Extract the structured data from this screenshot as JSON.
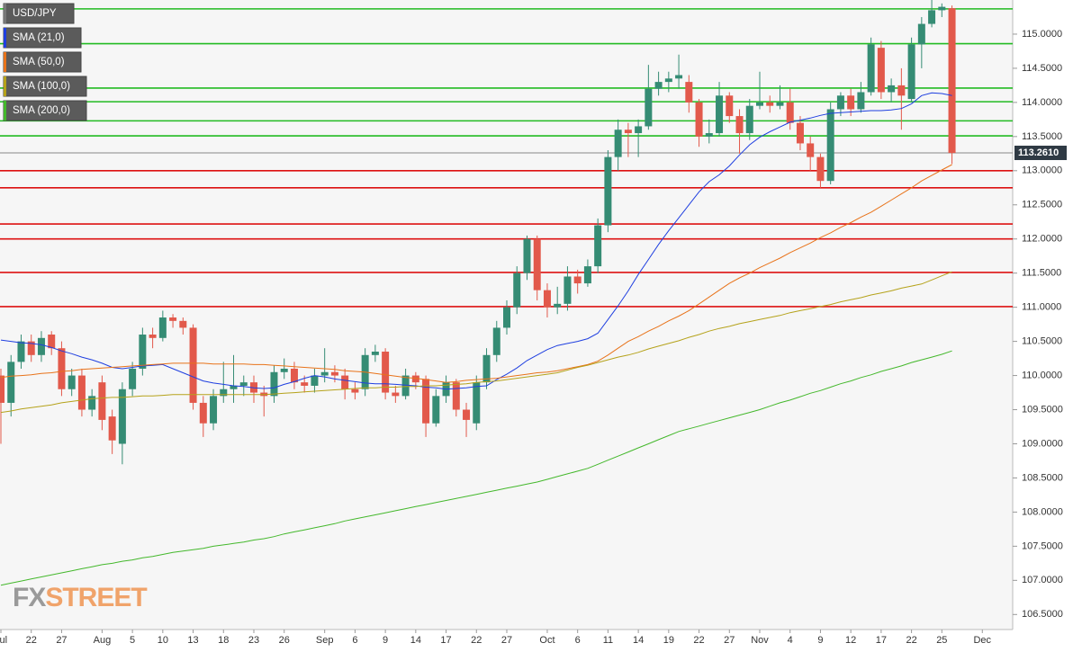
{
  "chart_data": {
    "type": "candlestick",
    "symbol": "USD/JPY",
    "watermark": [
      "FX",
      "STREET"
    ],
    "categories": [
      "Jul",
      null,
      null,
      "22",
      null,
      null,
      "27",
      null,
      null,
      null,
      "Aug",
      null,
      null,
      "5",
      null,
      null,
      "10",
      null,
      null,
      "13",
      null,
      null,
      "18",
      null,
      null,
      "23",
      null,
      null,
      "26",
      null,
      null,
      null,
      "Sep",
      null,
      null,
      "6",
      null,
      null,
      "9",
      null,
      null,
      "14",
      null,
      null,
      "17",
      null,
      null,
      "22",
      null,
      null,
      "27",
      null,
      null,
      null,
      "Oct",
      null,
      null,
      "6",
      null,
      null,
      "11",
      null,
      null,
      "14",
      null,
      null,
      "19",
      null,
      null,
      "22",
      null,
      null,
      "27",
      null,
      null,
      "Nov",
      null,
      null,
      "4",
      null,
      null,
      "9",
      null,
      null,
      "12",
      null,
      null,
      "17",
      null,
      null,
      "22",
      null,
      null,
      "25",
      null,
      null,
      null,
      "Dec"
    ],
    "ohlc": {
      "up_color": "#358c74",
      "down_color": "#e2594b",
      "open": [
        110.0,
        109.6,
        110.2,
        110.5,
        110.3,
        110.6,
        110.4,
        109.8,
        110.0,
        109.5,
        109.9,
        109.4,
        109.0,
        109.8,
        110.1,
        110.6,
        110.55,
        110.85,
        110.8,
        110.7,
        109.6,
        109.3,
        109.7,
        109.8,
        109.85,
        109.9,
        109.75,
        109.7,
        110.05,
        110.1,
        109.9,
        109.85,
        110.0,
        110.05,
        110.0,
        109.8,
        109.8,
        110.3,
        110.35,
        109.75,
        109.7,
        110.0,
        109.95,
        109.3,
        109.7,
        109.9,
        109.5,
        109.3,
        109.9,
        110.3,
        110.7,
        111.0,
        111.5,
        112.0,
        111.25,
        111.0,
        111.05,
        111.45,
        111.35,
        111.6,
        112.2,
        113.2,
        113.6,
        113.55,
        113.65,
        114.2,
        114.3,
        114.35,
        114.3,
        114.0,
        113.5,
        113.55,
        114.1,
        113.8,
        113.55,
        113.95,
        114.0,
        113.95,
        114.0,
        113.7,
        113.4,
        113.2,
        112.85,
        113.9,
        114.1,
        113.9,
        114.15,
        114.8,
        114.15,
        114.25,
        114.05,
        114.85,
        115.15,
        115.35,
        115.38,
        null,
        null,
        null
      ],
      "high": [
        110.1,
        110.3,
        110.6,
        110.6,
        110.65,
        110.65,
        110.5,
        110.1,
        110.1,
        109.8,
        110.0,
        109.5,
        109.9,
        110.2,
        110.7,
        110.7,
        110.95,
        110.9,
        110.85,
        110.75,
        109.7,
        109.8,
        110.2,
        110.3,
        110.0,
        110.0,
        109.85,
        110.15,
        110.25,
        110.2,
        110.0,
        110.1,
        110.4,
        110.15,
        110.1,
        109.9,
        110.4,
        110.45,
        110.4,
        109.85,
        110.1,
        110.05,
        110.0,
        109.8,
        110.0,
        109.95,
        109.6,
        110.0,
        110.4,
        110.8,
        111.1,
        111.6,
        112.05,
        112.05,
        111.35,
        111.3,
        111.6,
        111.55,
        111.7,
        112.3,
        113.3,
        113.75,
        113.7,
        113.75,
        114.55,
        114.45,
        114.45,
        114.7,
        114.4,
        114.05,
        113.75,
        114.3,
        114.15,
        113.9,
        114.05,
        114.45,
        114.1,
        114.25,
        114.2,
        113.8,
        113.5,
        113.25,
        114.0,
        114.15,
        114.2,
        114.3,
        114.95,
        114.9,
        114.35,
        114.5,
        114.95,
        115.25,
        115.5,
        115.45,
        115.42,
        null,
        null,
        null
      ],
      "low": [
        109.0,
        109.4,
        110.1,
        110.2,
        110.2,
        110.3,
        109.7,
        109.7,
        109.4,
        109.4,
        109.2,
        108.85,
        108.7,
        109.7,
        110.0,
        110.4,
        110.5,
        110.7,
        110.6,
        109.5,
        109.1,
        109.2,
        109.6,
        109.6,
        109.7,
        109.6,
        109.4,
        109.6,
        109.95,
        109.8,
        109.75,
        109.75,
        109.9,
        109.9,
        109.65,
        109.65,
        109.7,
        110.2,
        109.65,
        109.6,
        109.65,
        109.8,
        109.1,
        109.25,
        109.6,
        109.4,
        109.1,
        109.2,
        109.8,
        110.2,
        110.6,
        110.9,
        111.4,
        111.1,
        110.85,
        110.9,
        110.95,
        111.2,
        111.3,
        111.5,
        112.1,
        113.0,
        113.2,
        113.2,
        113.6,
        114.1,
        114.15,
        114.2,
        113.85,
        113.35,
        113.4,
        113.5,
        113.7,
        113.25,
        113.45,
        113.9,
        113.85,
        113.9,
        113.6,
        113.3,
        113.0,
        112.75,
        112.8,
        113.8,
        113.8,
        113.85,
        114.1,
        114.05,
        114.0,
        113.6,
        114.0,
        114.5,
        115.1,
        115.25,
        113.1,
        null,
        null,
        null
      ],
      "close": [
        109.6,
        110.2,
        110.5,
        110.3,
        110.55,
        110.4,
        109.8,
        110.0,
        109.5,
        109.7,
        109.35,
        109.05,
        109.8,
        110.1,
        110.6,
        110.55,
        110.85,
        110.8,
        110.7,
        109.6,
        109.3,
        109.7,
        109.8,
        109.85,
        109.9,
        109.75,
        109.7,
        110.05,
        110.1,
        109.9,
        109.85,
        110.0,
        110.05,
        110.0,
        109.8,
        109.75,
        110.3,
        110.35,
        109.75,
        109.7,
        110.0,
        109.9,
        109.3,
        109.7,
        109.9,
        109.5,
        109.35,
        109.9,
        110.3,
        110.7,
        111.0,
        111.5,
        112.0,
        111.25,
        111.0,
        111.05,
        111.45,
        111.35,
        111.6,
        112.2,
        113.2,
        113.6,
        113.55,
        113.65,
        114.2,
        114.3,
        114.35,
        114.4,
        114.0,
        113.5,
        113.55,
        114.1,
        113.8,
        113.55,
        113.95,
        114.0,
        113.95,
        114.0,
        113.7,
        113.4,
        113.2,
        112.85,
        113.9,
        114.1,
        113.9,
        114.15,
        114.85,
        114.15,
        114.25,
        114.1,
        114.85,
        115.15,
        115.35,
        115.4,
        113.26,
        null,
        null,
        null
      ]
    },
    "series": [
      {
        "name": "SMA (21,0)",
        "color": "#1f3fe0",
        "values": [
          110.52,
          110.5,
          110.48,
          110.47,
          110.45,
          110.41,
          110.36,
          110.32,
          110.27,
          110.23,
          110.18,
          110.12,
          110.1,
          110.12,
          110.14,
          110.15,
          110.16,
          110.1,
          110.04,
          109.98,
          109.92,
          109.89,
          109.87,
          109.85,
          109.84,
          109.82,
          109.81,
          109.82,
          109.87,
          109.91,
          109.96,
          110.0,
          109.98,
          109.95,
          109.93,
          109.91,
          109.89,
          109.88,
          109.88,
          109.87,
          109.86,
          109.85,
          109.83,
          109.82,
          109.8,
          109.81,
          109.82,
          109.84,
          109.85,
          109.94,
          110.02,
          110.11,
          110.22,
          110.3,
          110.38,
          110.44,
          110.47,
          110.5,
          110.54,
          110.62,
          110.82,
          111.02,
          111.24,
          111.48,
          111.7,
          111.92,
          112.12,
          112.31,
          112.5,
          112.69,
          112.84,
          112.94,
          113.07,
          113.23,
          113.38,
          113.49,
          113.57,
          113.64,
          113.71,
          113.74,
          113.77,
          113.81,
          113.84,
          113.85,
          113.86,
          113.87,
          113.88,
          113.88,
          113.89,
          113.91,
          113.98,
          114.1,
          114.14,
          114.13,
          114.1,
          null,
          null,
          null
        ]
      },
      {
        "name": "SMA (50,0)",
        "color": "#e8731a",
        "values": [
          109.97,
          109.99,
          110.0,
          110.01,
          110.03,
          110.04,
          110.06,
          110.07,
          110.09,
          110.1,
          110.11,
          110.12,
          110.13,
          110.14,
          110.15,
          110.16,
          110.17,
          110.18,
          110.18,
          110.18,
          110.18,
          110.17,
          110.17,
          110.17,
          110.17,
          110.16,
          110.16,
          110.15,
          110.14,
          110.13,
          110.12,
          110.11,
          110.1,
          110.09,
          110.07,
          110.06,
          110.05,
          110.03,
          110.01,
          109.99,
          109.97,
          109.96,
          109.94,
          109.92,
          109.9,
          109.91,
          109.93,
          109.94,
          109.95,
          109.96,
          109.98,
          110.0,
          110.02,
          110.04,
          110.05,
          110.07,
          110.1,
          110.13,
          110.16,
          110.21,
          110.3,
          110.4,
          110.5,
          110.57,
          110.65,
          110.72,
          110.8,
          110.87,
          110.95,
          111.05,
          111.15,
          111.25,
          111.35,
          111.43,
          111.5,
          111.58,
          111.65,
          111.72,
          111.8,
          111.87,
          111.94,
          112.02,
          112.09,
          112.17,
          112.24,
          112.32,
          112.39,
          112.48,
          112.57,
          112.66,
          112.75,
          112.85,
          112.93,
          113.01,
          113.09,
          null,
          null,
          null
        ]
      },
      {
        "name": "SMA (100,0)",
        "color": "#b5a21a",
        "values": [
          109.46,
          109.48,
          109.51,
          109.53,
          109.55,
          109.57,
          109.6,
          109.62,
          109.64,
          109.66,
          109.67,
          109.68,
          109.68,
          109.69,
          109.7,
          109.7,
          109.71,
          109.72,
          109.72,
          109.72,
          109.72,
          109.72,
          109.72,
          109.72,
          109.72,
          109.72,
          109.72,
          109.73,
          109.74,
          109.75,
          109.76,
          109.77,
          109.78,
          109.79,
          109.8,
          109.81,
          109.82,
          109.82,
          109.83,
          109.83,
          109.84,
          109.84,
          109.85,
          109.85,
          109.86,
          109.87,
          109.88,
          109.9,
          109.91,
          109.92,
          109.94,
          109.96,
          109.98,
          110.0,
          110.02,
          110.04,
          110.08,
          110.12,
          110.15,
          110.19,
          110.23,
          110.27,
          110.3,
          110.34,
          110.39,
          110.43,
          110.47,
          110.51,
          110.56,
          110.6,
          110.65,
          110.69,
          110.72,
          110.76,
          110.79,
          110.82,
          110.85,
          110.88,
          110.92,
          110.95,
          110.98,
          111.01,
          111.04,
          111.08,
          111.11,
          111.14,
          111.18,
          111.21,
          111.24,
          111.28,
          111.31,
          111.34,
          111.4,
          111.46,
          111.52,
          null,
          null,
          null
        ]
      },
      {
        "name": "SMA (200,0)",
        "color": "#44b82c",
        "values": [
          106.93,
          106.96,
          106.99,
          107.02,
          107.05,
          107.08,
          107.11,
          107.14,
          107.17,
          107.2,
          107.23,
          107.25,
          107.28,
          107.3,
          107.33,
          107.35,
          107.38,
          107.41,
          107.43,
          107.45,
          107.47,
          107.5,
          107.52,
          107.54,
          107.56,
          107.59,
          107.61,
          107.64,
          107.68,
          107.71,
          107.74,
          107.77,
          107.8,
          107.83,
          107.87,
          107.9,
          107.93,
          107.96,
          107.99,
          108.02,
          108.05,
          108.08,
          108.11,
          108.14,
          108.17,
          108.2,
          108.23,
          108.26,
          108.29,
          108.32,
          108.35,
          108.38,
          108.41,
          108.44,
          108.48,
          108.52,
          108.56,
          108.6,
          108.64,
          108.7,
          108.76,
          108.82,
          108.88,
          108.94,
          109.0,
          109.06,
          109.12,
          109.18,
          109.22,
          109.26,
          109.3,
          109.34,
          109.38,
          109.42,
          109.46,
          109.5,
          109.55,
          109.6,
          109.64,
          109.69,
          109.74,
          109.78,
          109.83,
          109.88,
          109.92,
          109.97,
          110.01,
          110.06,
          110.1,
          110.14,
          110.19,
          110.23,
          110.27,
          110.31,
          110.36,
          null,
          null,
          null
        ]
      }
    ],
    "levels": {
      "resistance": {
        "color": "#22bb22",
        "values": [
          115.37,
          114.86,
          114.21,
          114.01,
          113.73,
          113.51
        ]
      },
      "support": {
        "color": "#dd1111",
        "values": [
          113.0,
          112.75,
          112.22,
          112.0,
          111.51,
          111.01
        ]
      }
    },
    "last_price": {
      "value": 113.261,
      "label": "113.2610"
    },
    "ylim": [
      106.28,
      115.5
    ],
    "yticks": [
      {
        "value": 106.5,
        "label": "106.5000"
      },
      {
        "value": 107,
        "label": "107.0000"
      },
      {
        "value": 107.5,
        "label": "107.5000"
      },
      {
        "value": 108,
        "label": "108.0000"
      },
      {
        "value": 108.5,
        "label": "108.5000"
      },
      {
        "value": 109,
        "label": "109.0000"
      },
      {
        "value": 109.5,
        "label": "109.5000"
      },
      {
        "value": 110,
        "label": "110.0000"
      },
      {
        "value": 110.5,
        "label": "110.5000"
      },
      {
        "value": 111,
        "label": "111.0000"
      },
      {
        "value": 111.5,
        "label": "111.5000"
      },
      {
        "value": 112,
        "label": "112.0000"
      },
      {
        "value": 112.5,
        "label": "112.5000"
      },
      {
        "value": 113,
        "label": "113.0000"
      },
      {
        "value": 113.5,
        "label": "113.5000"
      },
      {
        "value": 114,
        "label": "114.0000"
      },
      {
        "value": 114.5,
        "label": "114.5000"
      },
      {
        "value": 115,
        "label": "115.0000"
      }
    ],
    "grid": false
  }
}
